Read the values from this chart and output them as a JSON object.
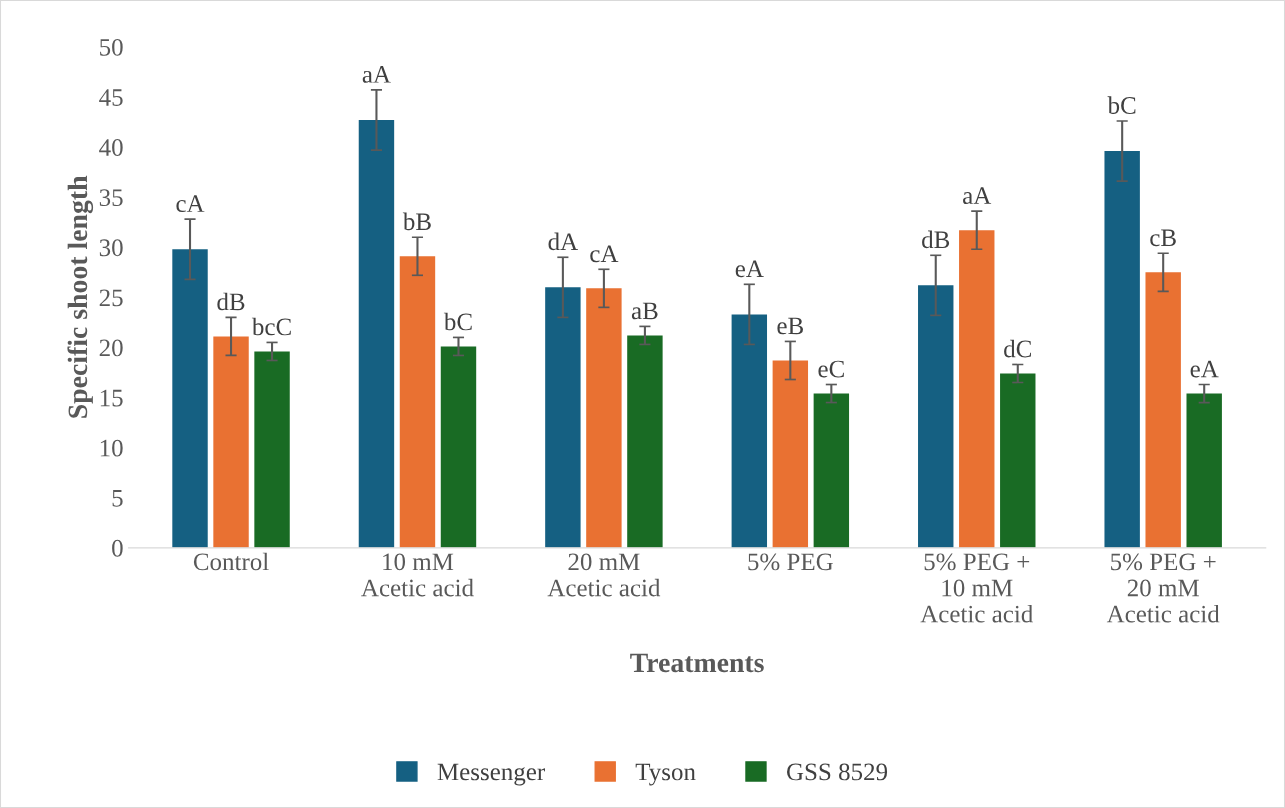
{
  "chart_data": {
    "type": "bar",
    "xlabel": "Treatments",
    "ylabel": "Specific shoot length",
    "categories": [
      "Control",
      "10 mM\nAcetic acid",
      "20 mM\nAcetic acid",
      "5% PEG",
      "5% PEG +\n10 mM\nAcetic acid",
      "5% PEG +\n20 mM\nAcetic acid"
    ],
    "series": [
      {
        "name": "Messenger",
        "color": "#156082",
        "values": [
          29.8,
          42.7,
          26.0,
          23.3,
          26.2,
          39.6
        ],
        "errors": [
          3,
          3,
          3,
          3,
          3,
          3
        ],
        "value_labels": [
          "cA",
          "aA",
          "dA",
          "eA",
          "dB",
          "bC"
        ]
      },
      {
        "name": "Tyson",
        "color": "#e97132",
        "values": [
          21.1,
          29.1,
          25.9,
          18.7,
          31.7,
          27.5
        ],
        "errors": [
          1.9,
          1.9,
          1.9,
          1.9,
          1.9,
          1.9
        ],
        "value_labels": [
          "dB",
          "bB",
          "cA",
          "eB",
          "aA",
          "cB"
        ]
      },
      {
        "name": "GSS 8529",
        "color": "#196b24",
        "values": [
          19.6,
          20.1,
          21.2,
          15.4,
          17.4,
          15.4
        ],
        "errors": [
          0.9,
          0.9,
          0.9,
          0.9,
          0.9,
          0.9
        ],
        "value_labels": [
          "bcC",
          "bC",
          "aB",
          "eC",
          "dC",
          "eA"
        ]
      }
    ],
    "ylim": [
      0,
      50
    ],
    "yticks": [
      0,
      5,
      10,
      15,
      20,
      25,
      30,
      35,
      40,
      45,
      50
    ],
    "grid": false,
    "legend": "bottom"
  }
}
